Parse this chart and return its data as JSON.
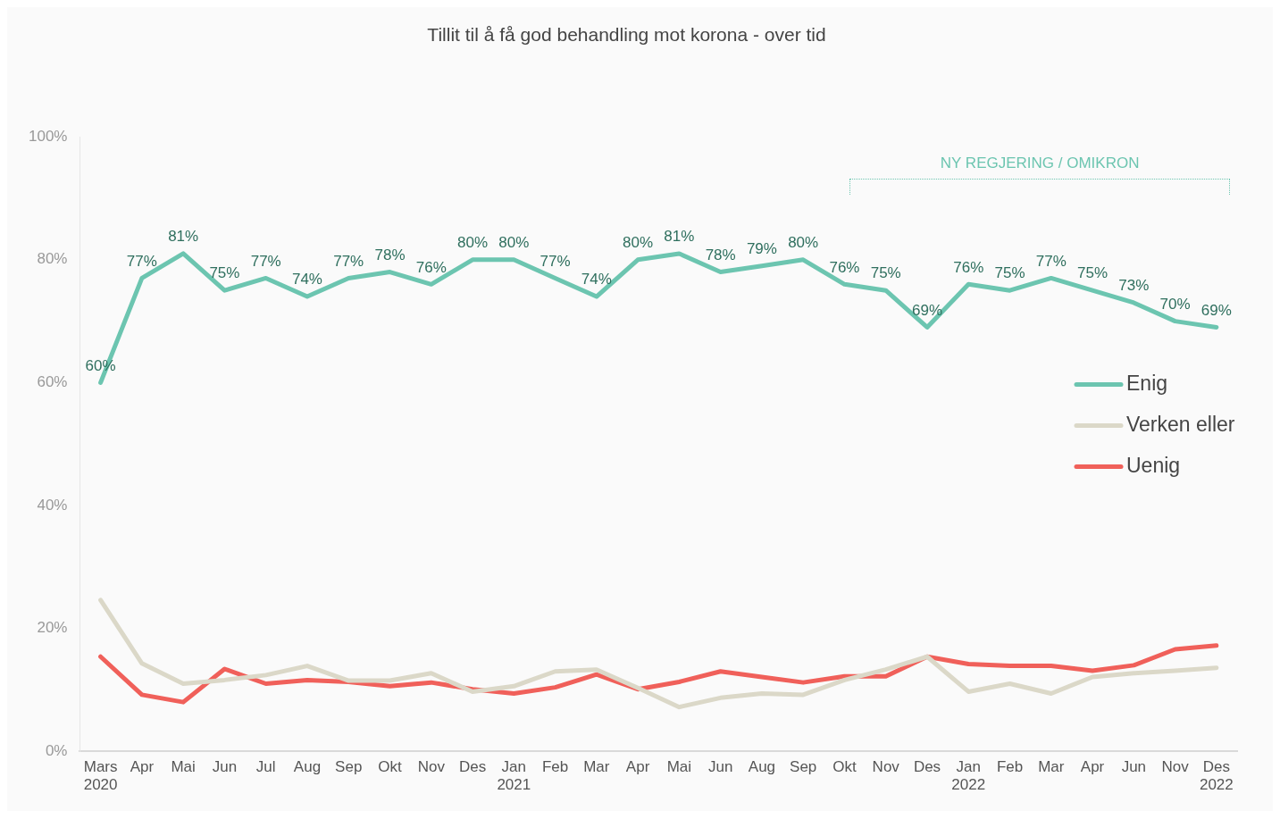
{
  "chart_data": {
    "type": "line",
    "title": "Tillit til å få god behandling mot korona - over tid",
    "categories": [
      "Mars 2020",
      "Apr",
      "Mai",
      "Jun",
      "Jul",
      "Aug",
      "Sep",
      "Okt",
      "Nov",
      "Des",
      "Jan 2021",
      "Feb",
      "Mar",
      "Apr",
      "Mai",
      "Jun",
      "Aug",
      "Sep",
      "Okt",
      "Nov",
      "Des",
      "Jan 2022",
      "Feb",
      "Mar",
      "Apr",
      "Jun",
      "Nov",
      "Des 2022"
    ],
    "series": [
      {
        "name": "Enig",
        "color": "#6cc5b0",
        "values": [
          60,
          77,
          81,
          75,
          77,
          74,
          77,
          78,
          76,
          80,
          80,
          77,
          74,
          80,
          81,
          78,
          79,
          80,
          76,
          75,
          69,
          76,
          75,
          77,
          75,
          73,
          70,
          69
        ],
        "value_labels": [
          "60%",
          "77%",
          "81%",
          "75%",
          "77%",
          "74%",
          "77%",
          "78%",
          "76%",
          "80%",
          "80%",
          "77%",
          "74%",
          "80%",
          "81%",
          "78%",
          "79%",
          "80%",
          "76%",
          "75%",
          "69%",
          "76%",
          "75%",
          "77%",
          "75%",
          "73%",
          "70%",
          "69%"
        ]
      },
      {
        "name": "Verken eller",
        "color": "#dbd8c8",
        "values": [
          24.6,
          14.3,
          11.0,
          11.6,
          12.4,
          13.9,
          11.5,
          11.5,
          12.7,
          9.7,
          10.6,
          13.0,
          13.3,
          10.3,
          7.2,
          8.7,
          9.4,
          9.2,
          11.6,
          13.3,
          15.4,
          9.7,
          11.0,
          9.4,
          12.1,
          12.7,
          13.1,
          13.6
        ]
      },
      {
        "name": "Uenig",
        "color": "#f0605a",
        "values": [
          15.4,
          9.2,
          8.0,
          13.4,
          11.0,
          11.6,
          11.3,
          10.6,
          11.2,
          10.1,
          9.4,
          10.4,
          12.5,
          10.1,
          11.3,
          13.0,
          12.1,
          11.2,
          12.2,
          12.2,
          15.4,
          14.2,
          13.9,
          13.9,
          13.1,
          14.0,
          16.6,
          17.2
        ]
      }
    ],
    "ylim": [
      0,
      100
    ],
    "yticks": [
      {
        "value": 0,
        "label": "0%"
      },
      {
        "value": 20,
        "label": "20%"
      },
      {
        "value": 40,
        "label": "40%"
      },
      {
        "value": 60,
        "label": "60%"
      },
      {
        "value": 80,
        "label": "80%"
      },
      {
        "value": 100,
        "label": "100%"
      }
    ],
    "grid": false,
    "legend": "right",
    "marker": "none",
    "line_style": "solid",
    "annotations": [
      "NY REGJERING / OMIKRON"
    ]
  }
}
